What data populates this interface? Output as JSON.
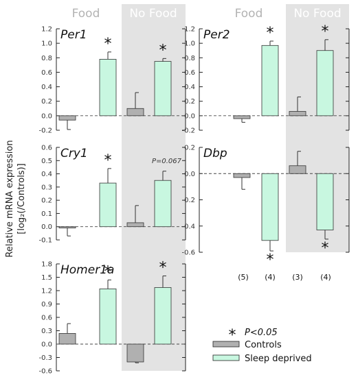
{
  "headers": {
    "food": "Food",
    "no_food": "No Food"
  },
  "ylabel_line1": "Relative mRNA expression",
  "ylabel_line2": "[log₂(/Controls)]",
  "legend": {
    "star_text": "P<0.05",
    "controls": "Controls",
    "sleep_deprived": "Sleep deprived",
    "controls_color": "#b0b0b0",
    "sd_color": "#c8f7e0"
  },
  "sample_sizes": [
    "(5)",
    "(4)",
    "(3)",
    "(4)"
  ],
  "chart_data": [
    {
      "type": "bar",
      "gene": "Per1",
      "categories": [
        "Food Controls",
        "Food Sleep deprived",
        "No Food Controls",
        "No Food Sleep deprived"
      ],
      "values": [
        -0.06,
        0.78,
        0.1,
        0.75
      ],
      "errors": [
        0.13,
        0.1,
        0.22,
        0.04
      ],
      "significant": [
        false,
        true,
        false,
        true
      ],
      "ylim": [
        -0.2,
        1.2
      ],
      "yticks": [
        "1.2",
        "1.0",
        "0.8",
        "0.6",
        "0.4",
        "0.2",
        "0.0",
        "-0.2"
      ],
      "note": ""
    },
    {
      "type": "bar",
      "gene": "Per2",
      "categories": [
        "Food Controls",
        "Food Sleep deprived",
        "No Food Controls",
        "No Food Sleep deprived"
      ],
      "values": [
        -0.04,
        0.97,
        0.06,
        0.9
      ],
      "errors": [
        0.05,
        0.06,
        0.2,
        0.15
      ],
      "significant": [
        false,
        true,
        false,
        true
      ],
      "ylim": [
        -0.2,
        1.2
      ],
      "yticks": [
        "1.2",
        "1.0",
        "0.8",
        "0.6",
        "0.4",
        "0.2",
        "0.0",
        "-0.2"
      ],
      "note": ""
    },
    {
      "type": "bar",
      "gene": "Cry1",
      "categories": [
        "Food Controls",
        "Food Sleep deprived",
        "No Food Controls",
        "No Food Sleep deprived"
      ],
      "values": [
        -0.01,
        0.33,
        0.03,
        0.35
      ],
      "errors": [
        0.06,
        0.11,
        0.13,
        0.07
      ],
      "significant": [
        false,
        true,
        false,
        false
      ],
      "ylim": [
        -0.1,
        0.6
      ],
      "yticks": [
        "0.6",
        "0.5",
        "0.4",
        "0.3",
        "0.2",
        "0.1",
        "0.0",
        "-0.1"
      ],
      "note": "P=0.067"
    },
    {
      "type": "bar",
      "gene": "Dbp",
      "categories": [
        "Food Controls",
        "Food Sleep deprived",
        "No Food Controls",
        "No Food Sleep deprived"
      ],
      "values": [
        -0.03,
        -0.51,
        0.06,
        -0.43
      ],
      "errors": [
        0.09,
        0.08,
        0.11,
        0.07
      ],
      "significant": [
        false,
        true,
        false,
        true
      ],
      "ylim": [
        -0.6,
        0.2
      ],
      "yticks": [
        "0.2",
        "0.0",
        "-0.2",
        "-0.4",
        "-0.6"
      ],
      "note": ""
    },
    {
      "type": "bar",
      "gene": "Homer1a",
      "categories": [
        "Food Controls",
        "Food Sleep deprived",
        "No Food Controls",
        "No Food Sleep deprived"
      ],
      "values": [
        0.24,
        1.24,
        -0.4,
        1.27
      ],
      "errors": [
        0.22,
        0.2,
        0.02,
        0.26
      ],
      "significant": [
        false,
        true,
        false,
        true
      ],
      "ylim": [
        -0.6,
        1.8
      ],
      "yticks": [
        "1.8",
        "1.5",
        "1.2",
        "0.9",
        "0.6",
        "0.3",
        "0.0",
        "-0.3",
        "-0.6"
      ],
      "note": ""
    }
  ]
}
